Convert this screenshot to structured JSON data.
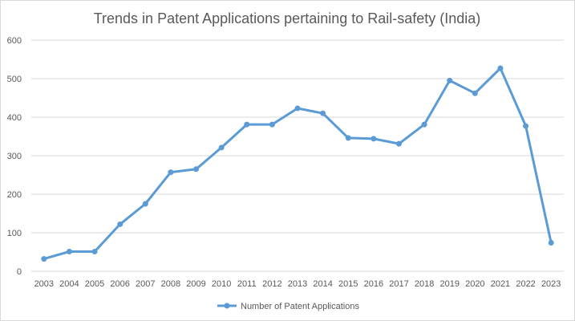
{
  "chart_data": {
    "type": "line",
    "title": "Trends in Patent Applications pertaining to Rail-safety (India)",
    "xlabel": "",
    "ylabel": "",
    "ylim": [
      0,
      600
    ],
    "yticks": [
      0,
      100,
      200,
      300,
      400,
      500,
      600
    ],
    "grid": true,
    "legend_position": "bottom",
    "categories": [
      "2003",
      "2004",
      "2005",
      "2006",
      "2007",
      "2008",
      "2009",
      "2010",
      "2011",
      "2012",
      "2013",
      "2014",
      "2015",
      "2016",
      "2017",
      "2018",
      "2019",
      "2020",
      "2021",
      "2022",
      "2023"
    ],
    "series": [
      {
        "name": "Number of Patent Applications",
        "color": "#5b9bd5",
        "values": [
          32,
          51,
          51,
          122,
          175,
          257,
          265,
          321,
          381,
          381,
          423,
          410,
          346,
          344,
          331,
          381,
          495,
          462,
          527,
          377,
          74
        ]
      }
    ]
  }
}
